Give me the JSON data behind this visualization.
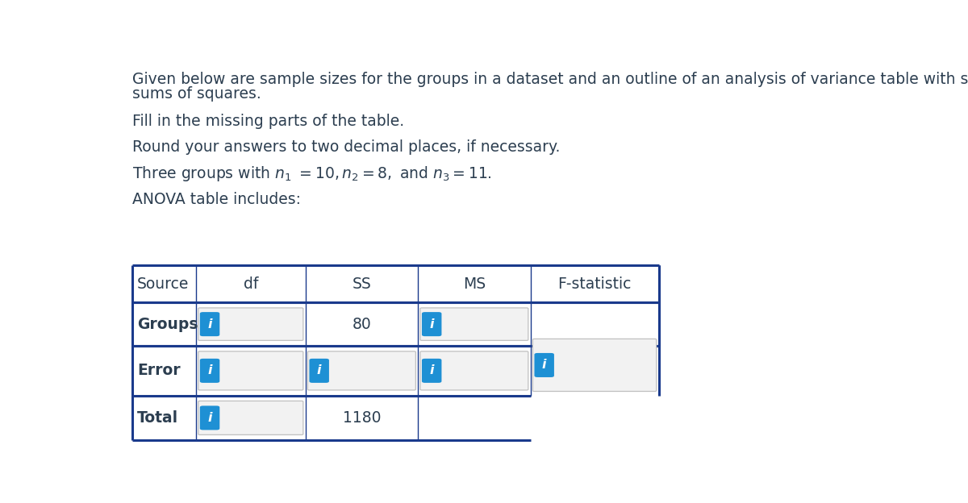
{
  "title_line1": "Given below are sample sizes for the groups in a dataset and an outline of an analysis of variance table with some information on the",
  "title_line2": "sums of squares.",
  "line2": "Fill in the missing parts of the table.",
  "line3": "Round your answers to two decimal places, if necessary.",
  "line4_math": "Three groups with $n_1 \\ = 10, n_2 = 8,$ and $n_3 = 11.$",
  "line5": "ANOVA table includes:",
  "table_header": [
    "Source",
    "df",
    "SS",
    "MS",
    "F-statistic"
  ],
  "blue_color": "#1e90d4",
  "border_color": "#1a3a8c",
  "input_box_fill": "#f2f2f2",
  "input_box_edge": "#c0c0c0",
  "background": "#ffffff",
  "text_color": "#2c3e50",
  "font_size_body": 13.5,
  "font_size_table": 13.5
}
